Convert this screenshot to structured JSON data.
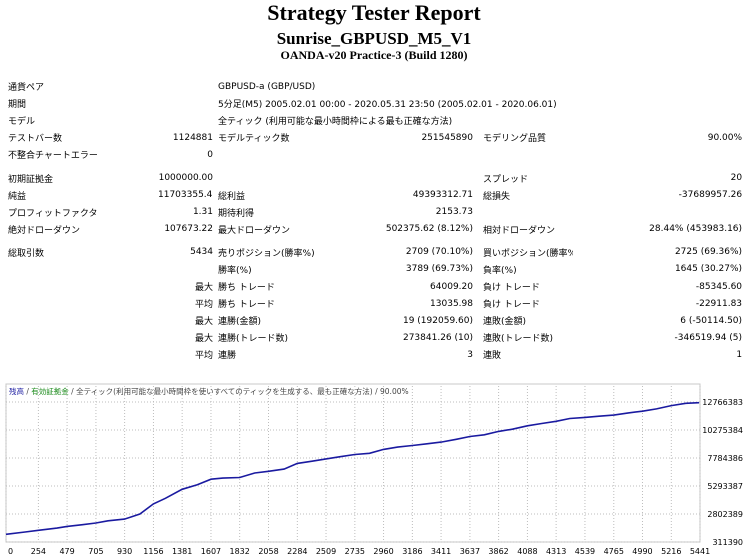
{
  "report": {
    "title": "Strategy Tester Report",
    "subtitle": "Sunrise_GBPUSD_M5_V1",
    "server": "OANDA-v20 Practice-3 (Build 1280)"
  },
  "info": {
    "symbol_label": "通貨ペア",
    "symbol_value": "GBPUSD-a (GBP/USD)",
    "period_label": "期間",
    "period_value": "5分足(M5) 2005.02.01 00:00 - 2020.05.31 23:50 (2005.02.01 - 2020.06.01)",
    "model_label": "モデル",
    "model_value": "全ティック (利用可能な最小時間枠による最も正確な方法)"
  },
  "stats": {
    "bars_label": "テストバー数",
    "bars_value": "1124881",
    "ticks_label": "モデルティック数",
    "ticks_value": "251545890",
    "quality_label": "モデリング品質",
    "quality_value": "90.00%",
    "mismatch_label": "不整合チャートエラー",
    "mismatch_value": "0",
    "deposit_label": "初期証拠金",
    "deposit_value": "1000000.00",
    "spread_label": "スプレッド",
    "spread_value": "20",
    "net_label": "純益",
    "net_value": "11703355.45",
    "gross_profit_label": "総利益",
    "gross_profit_value": "49393312.71",
    "gross_loss_label": "総損失",
    "gross_loss_value": "-37689957.26",
    "pf_label": "プロフィットファクタ",
    "pf_value": "1.31",
    "expected_label": "期待利得",
    "expected_value": "2153.73",
    "abs_dd_label": "絶対ドローダウン",
    "abs_dd_value": "107673.22",
    "max_dd_label": "最大ドローダウン",
    "max_dd_value": "502375.62 (8.12%)",
    "rel_dd_label": "相対ドローダウン",
    "rel_dd_value": "28.44% (453983.16)",
    "trades_label": "総取引数",
    "trades_value": "5434",
    "short_label": "売りポジション(勝率%)",
    "short_value": "2709 (70.10%)",
    "long_label": "買いポジション(勝率%)",
    "long_value": "2725 (69.36%)",
    "win_label": "勝率(%)",
    "win_value": "3789 (69.73%)",
    "loss_label": "負率(%)",
    "loss_value": "1645 (30.27%)",
    "max_word": "最大",
    "avg_word": "平均",
    "largest_win_label": "勝ち トレード",
    "largest_win_value": "64009.20",
    "largest_loss_label": "負け トレード",
    "largest_loss_value": "-85345.60",
    "avg_win_label": "勝ち トレード",
    "avg_win_value": "13035.98",
    "avg_loss_label": "負け トレード",
    "avg_loss_value": "-22911.83",
    "max_consec_wins_label": "連勝(金額)",
    "max_consec_wins_value": "19 (192059.60)",
    "max_consec_losses_label": "連敗(金額)",
    "max_consec_losses_value": "6 (-50114.50)",
    "max_consec_profit_label": "連勝(トレード数)",
    "max_consec_profit_value": "273841.26 (10)",
    "max_consec_loss_label": "連敗(トレード数)",
    "max_consec_loss_value": "-346519.94 (5)",
    "avg_consec_wins_label": "連勝",
    "avg_consec_wins_value": "3",
    "avg_consec_losses_label": "連敗",
    "avg_consec_losses_value": "1"
  },
  "chart_data": {
    "type": "line",
    "legend": {
      "balance": "残高",
      "sep1": " / ",
      "margin": "有効証拠金",
      "sep2": " / ",
      "model": "全ティック(利用可能な最小時間枠を使いすべてのティックを生成する、最も正確な方法)",
      "sep3": " / ",
      "quality": "90.00%"
    },
    "x_ticks": [
      "0",
      "254",
      "479",
      "705",
      "930",
      "1156",
      "1381",
      "1607",
      "1832",
      "2058",
      "2284",
      "2509",
      "2735",
      "2960",
      "3186",
      "3411",
      "3637",
      "3862",
      "4088",
      "4313",
      "4539",
      "4765",
      "4990",
      "5216",
      "5441"
    ],
    "y_ticks": [
      "12766383",
      "10275384",
      "7784386",
      "5293387",
      "2802389",
      "311390"
    ],
    "xlim": [
      0,
      5441
    ],
    "ylim": [
      311390,
      12766383
    ],
    "series": [
      {
        "name": "残高",
        "color": "#1a1aa0",
        "x": [
          0,
          150,
          254,
          400,
          479,
          600,
          705,
          800,
          930,
          1050,
          1156,
          1250,
          1381,
          1500,
          1607,
          1700,
          1832,
          1950,
          2058,
          2180,
          2284,
          2400,
          2509,
          2620,
          2735,
          2850,
          2960,
          3070,
          3186,
          3300,
          3411,
          3530,
          3637,
          3750,
          3862,
          3970,
          4088,
          4200,
          4313,
          4420,
          4539,
          4650,
          4765,
          4880,
          4990,
          5100,
          5216,
          5330,
          5434
        ],
        "y": [
          1000000,
          1200000,
          1350000,
          1550000,
          1700000,
          1850000,
          2000000,
          2200000,
          2350000,
          2800000,
          3700000,
          4200000,
          5000000,
          5400000,
          5900000,
          6000000,
          6050000,
          6450000,
          6600000,
          6800000,
          7300000,
          7500000,
          7700000,
          7900000,
          8100000,
          8200000,
          8550000,
          8750000,
          8900000,
          9050000,
          9200000,
          9450000,
          9700000,
          9850000,
          10150000,
          10350000,
          10650000,
          10850000,
          11050000,
          11300000,
          11400000,
          11500000,
          11600000,
          11800000,
          11950000,
          12150000,
          12450000,
          12650000,
          12703355
        ]
      }
    ]
  }
}
